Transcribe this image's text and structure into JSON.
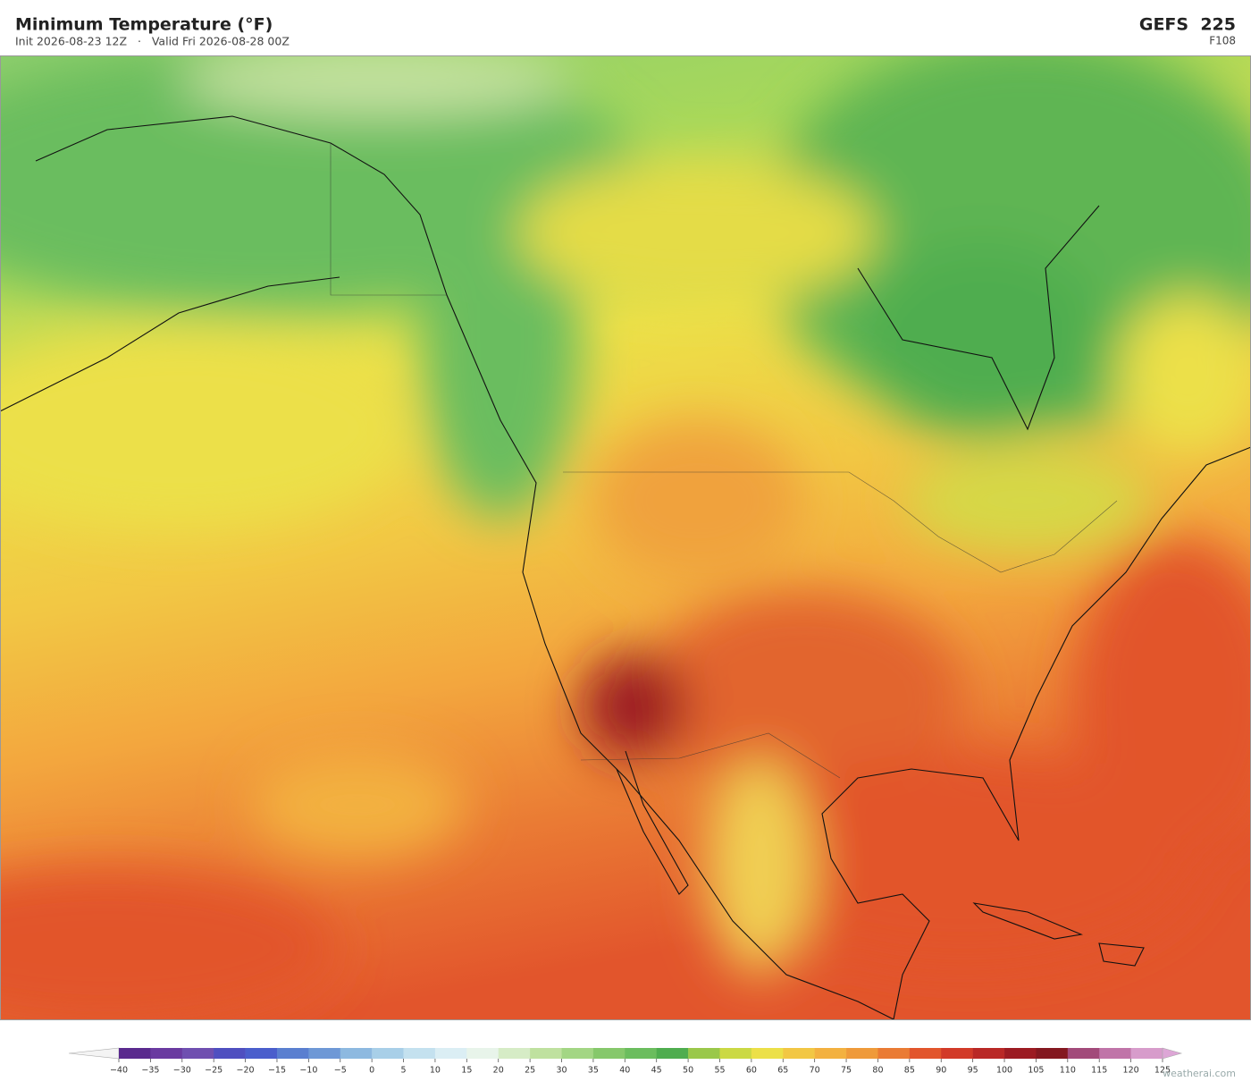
{
  "header": {
    "title": "Minimum Temperature  (°F)",
    "subtitle": "Init 2026-08-23 12Z   ·   Valid Fri 2026-08-28 00Z",
    "model": "GEFS  225",
    "forecast_hour": "F108"
  },
  "colorbar": {
    "range": [
      -40,
      125
    ],
    "ticks": [
      {
        "value": -40,
        "label": "−40"
      },
      {
        "value": -35,
        "label": "−35"
      },
      {
        "value": -30,
        "label": "−30"
      },
      {
        "value": -25,
        "label": "−25"
      },
      {
        "value": -20,
        "label": "−20"
      },
      {
        "value": -15,
        "label": "−15"
      },
      {
        "value": -10,
        "label": "−10"
      },
      {
        "value": -5,
        "label": "−5"
      },
      0,
      5,
      10,
      15,
      20,
      25,
      30,
      35,
      40,
      45,
      50,
      55,
      60,
      65,
      70,
      75,
      80,
      85,
      90,
      95,
      100,
      105,
      110,
      115,
      120,
      125
    ],
    "colors": [
      "#5a2a8e",
      "#6a3aa0",
      "#6f4fb0",
      "#4f4fc0",
      "#4a5ecc",
      "#5a7fd0",
      "#6e98d6",
      "#8db9e0",
      "#a8cfe8",
      "#c4e1ef",
      "#dbeef4",
      "#e8f4ea",
      "#d6ecc6",
      "#bfe19f",
      "#a3d684",
      "#86c86b",
      "#6bbd5e",
      "#4fad4f",
      "#9ac84a",
      "#cbd944",
      "#ece048",
      "#f2c744",
      "#f3b140",
      "#ef9a3a",
      "#ea7b34",
      "#e2552c",
      "#d23a28",
      "#b92826",
      "#9c1b22",
      "#841820",
      "#a24a7a",
      "#c074a8",
      "#d79ccb"
    ],
    "under_color": "#f4f4f4",
    "over_color": "#dda6d6"
  },
  "credit": "weatherai.com"
}
